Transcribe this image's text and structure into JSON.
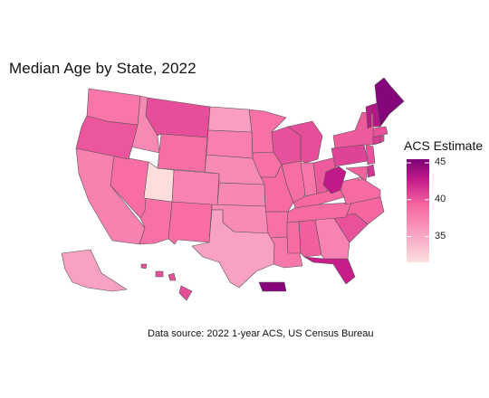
{
  "title": "Median Age by State, 2022",
  "caption": "Data source: 2022 1-year ACS, US Census Bureau",
  "legend": {
    "title": "ACS Estimate",
    "ticks": [
      "45",
      "40",
      "35"
    ],
    "tick_values": [
      45,
      40,
      35
    ],
    "range": [
      31.5,
      45.5
    ],
    "colors": {
      "low": "#fde0dd",
      "mid_low": "#f99ec1",
      "mid": "#f768a1",
      "mid_high": "#c51b8a",
      "high": "#7a0177"
    }
  },
  "map_data": {
    "type": "choropleth",
    "variable": "median_age",
    "regions": [
      {
        "name": "Alabama",
        "value": 39.6
      },
      {
        "name": "Alaska",
        "value": 35.5
      },
      {
        "name": "Arizona",
        "value": 38.6
      },
      {
        "name": "Arkansas",
        "value": 38.7
      },
      {
        "name": "California",
        "value": 37.6
      },
      {
        "name": "Colorado",
        "value": 37.5
      },
      {
        "name": "Connecticut",
        "value": 41.2
      },
      {
        "name": "Delaware",
        "value": 41.6
      },
      {
        "name": "Florida",
        "value": 42.6
      },
      {
        "name": "Georgia",
        "value": 37.5
      },
      {
        "name": "Hawaii",
        "value": 40.4
      },
      {
        "name": "Idaho",
        "value": 37.1
      },
      {
        "name": "Illinois",
        "value": 38.8
      },
      {
        "name": "Indiana",
        "value": 38.3
      },
      {
        "name": "Iowa",
        "value": 38.6
      },
      {
        "name": "Kansas",
        "value": 37.2
      },
      {
        "name": "Kentucky",
        "value": 39.2
      },
      {
        "name": "Louisiana",
        "value": 38.2
      },
      {
        "name": "Maine",
        "value": 45.1
      },
      {
        "name": "Maryland",
        "value": 39.5
      },
      {
        "name": "Massachusetts",
        "value": 40.2
      },
      {
        "name": "Michigan",
        "value": 40.4
      },
      {
        "name": "Minnesota",
        "value": 38.6
      },
      {
        "name": "Mississippi",
        "value": 39.0
      },
      {
        "name": "Missouri",
        "value": 39.1
      },
      {
        "name": "Montana",
        "value": 40.4
      },
      {
        "name": "Nebraska",
        "value": 36.9
      },
      {
        "name": "Nevada",
        "value": 38.9
      },
      {
        "name": "New Hampshire",
        "value": 43.3
      },
      {
        "name": "New Jersey",
        "value": 40.2
      },
      {
        "name": "New Mexico",
        "value": 38.9
      },
      {
        "name": "New York",
        "value": 39.8
      },
      {
        "name": "North Carolina",
        "value": 39.3
      },
      {
        "name": "North Dakota",
        "value": 35.7
      },
      {
        "name": "Ohio",
        "value": 39.8
      },
      {
        "name": "Oklahoma",
        "value": 37.0
      },
      {
        "name": "Oregon",
        "value": 40.0
      },
      {
        "name": "Pennsylvania",
        "value": 40.9
      },
      {
        "name": "Rhode Island",
        "value": 40.7
      },
      {
        "name": "South Carolina",
        "value": 40.2
      },
      {
        "name": "South Dakota",
        "value": 37.7
      },
      {
        "name": "Tennessee",
        "value": 39.0
      },
      {
        "name": "Texas",
        "value": 35.5
      },
      {
        "name": "Utah",
        "value": 31.6
      },
      {
        "name": "Vermont",
        "value": 43.0
      },
      {
        "name": "Virginia",
        "value": 39.0
      },
      {
        "name": "Washington",
        "value": 38.3
      },
      {
        "name": "West Virginia",
        "value": 42.9
      },
      {
        "name": "Wisconsin",
        "value": 40.3
      },
      {
        "name": "Wyoming",
        "value": 38.8
      },
      {
        "name": "District of Columbia",
        "value": 34.9
      },
      {
        "name": "Puerto Rico",
        "value": 45.0
      }
    ]
  }
}
